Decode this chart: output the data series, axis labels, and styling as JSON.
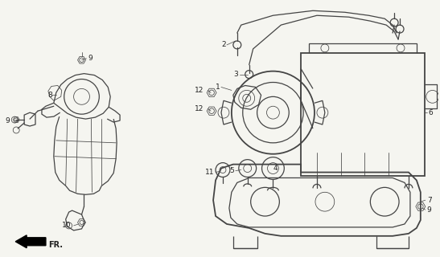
{
  "bg_color": "#f5f5f0",
  "line_color": "#444444",
  "label_color": "#222222",
  "figsize": [
    5.47,
    3.2
  ],
  "dpi": 100,
  "lw_main": 0.9,
  "lw_thin": 0.55,
  "lw_heavy": 1.3
}
